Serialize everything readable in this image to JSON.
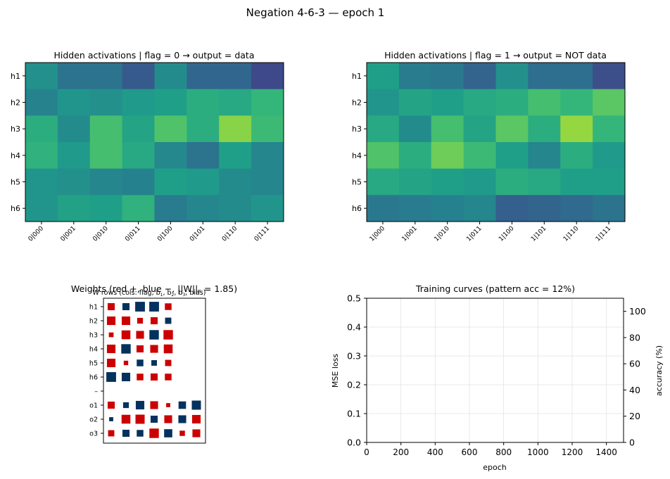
{
  "figure": {
    "suptitle": "Negation 4-6-3  —  epoch 1"
  },
  "chart_data": [
    {
      "type": "heatmap",
      "title": "Hidden activations  |  flag = 0  →  output = data",
      "rows": [
        "h1",
        "h2",
        "h3",
        "h4",
        "h5",
        "h6"
      ],
      "columns": [
        "0|000",
        "0|001",
        "0|010",
        "0|011",
        "0|100",
        "0|101",
        "0|110",
        "0|111"
      ],
      "colormap": "viridis",
      "vmin": 0,
      "vmax": 1,
      "values": [
        [
          0.5,
          0.38,
          0.38,
          0.28,
          0.48,
          0.33,
          0.33,
          0.22
        ],
        [
          0.45,
          0.52,
          0.5,
          0.54,
          0.56,
          0.62,
          0.6,
          0.66
        ],
        [
          0.62,
          0.48,
          0.7,
          0.58,
          0.72,
          0.62,
          0.82,
          0.68
        ],
        [
          0.64,
          0.54,
          0.7,
          0.6,
          0.47,
          0.38,
          0.56,
          0.46
        ],
        [
          0.52,
          0.5,
          0.46,
          0.44,
          0.56,
          0.54,
          0.48,
          0.46
        ],
        [
          0.52,
          0.57,
          0.56,
          0.64,
          0.42,
          0.46,
          0.48,
          0.52
        ]
      ]
    },
    {
      "type": "heatmap",
      "title": "Hidden activations  |  flag = 1  →  output = NOT data",
      "rows": [
        "h1",
        "h2",
        "h3",
        "h4",
        "h5",
        "h6"
      ],
      "columns": [
        "1|000",
        "1|001",
        "1|010",
        "1|011",
        "1|100",
        "1|101",
        "1|110",
        "1|111"
      ],
      "colormap": "viridis",
      "vmin": 0,
      "vmax": 1,
      "values": [
        [
          0.56,
          0.42,
          0.4,
          0.32,
          0.5,
          0.36,
          0.36,
          0.24
        ],
        [
          0.52,
          0.58,
          0.56,
          0.6,
          0.62,
          0.7,
          0.66,
          0.74
        ],
        [
          0.6,
          0.48,
          0.7,
          0.58,
          0.74,
          0.62,
          0.84,
          0.66
        ],
        [
          0.72,
          0.62,
          0.78,
          0.68,
          0.56,
          0.46,
          0.62,
          0.54
        ],
        [
          0.6,
          0.58,
          0.56,
          0.54,
          0.62,
          0.6,
          0.56,
          0.56
        ],
        [
          0.4,
          0.42,
          0.44,
          0.46,
          0.3,
          0.32,
          0.34,
          0.38
        ]
      ]
    },
    {
      "type": "hinton",
      "title": "Weights  (red +, blue −,  ||W||",
      "title_norm_suffix": "F",
      "title_norm_value": " = 1.85)",
      "subtitle": "W rows  (cols: flag, b",
      "subtitle_parts": [
        "W rows  (cols: flag, b",
        "1",
        ", b",
        "2",
        ", b",
        "3",
        ", bias)"
      ],
      "colors": {
        "positive": "#cc0000",
        "negative": "#04325f"
      },
      "row_labels": [
        "h1",
        "h2",
        "h3",
        "h4",
        "h5",
        "h6",
        "",
        "o1",
        "o2",
        "o3"
      ],
      "gap_row_label": "–",
      "hidden_rows": [
        [
          0.45,
          -0.45,
          -0.85,
          -0.85,
          0.4
        ],
        [
          0.65,
          0.65,
          0.3,
          0.45,
          -0.35
        ],
        [
          0.2,
          0.7,
          0.55,
          -0.8,
          0.8
        ],
        [
          0.65,
          -0.8,
          0.45,
          0.55,
          0.7
        ],
        [
          0.65,
          0.18,
          -0.4,
          -0.28,
          0.35
        ]
      ],
      "hidden_row_6": [
        -0.85,
        -0.65,
        0.4,
        0.45,
        0.4
      ],
      "output_rows": [
        [
          0.45,
          -0.3,
          -0.65,
          0.55,
          0.15,
          -0.5,
          -0.75
        ],
        [
          -0.15,
          0.7,
          0.75,
          -0.45,
          0.55,
          -0.55,
          0.65
        ],
        [
          0.35,
          -0.45,
          -0.4,
          0.8,
          -0.6,
          0.25,
          0.55
        ]
      ]
    },
    {
      "type": "line",
      "title": "Training curves  (pattern acc = 12%)",
      "xlabel": "epoch",
      "ylabel": "MSE loss",
      "y2label": "accuracy (%)",
      "xlim": [
        0,
        1500
      ],
      "ylim": [
        0,
        0.5
      ],
      "y2lim": [
        0,
        110
      ],
      "xticks": [
        "0",
        "200",
        "400",
        "600",
        "800",
        "1000",
        "1200",
        "1400"
      ],
      "yticks": [
        "0.0",
        "0.1",
        "0.2",
        "0.3",
        "0.4",
        "0.5"
      ],
      "y2ticks": [
        "0",
        "20",
        "40",
        "60",
        "80",
        "100"
      ],
      "grid": true,
      "loss_color": "#9467bd",
      "series": []
    }
  ]
}
